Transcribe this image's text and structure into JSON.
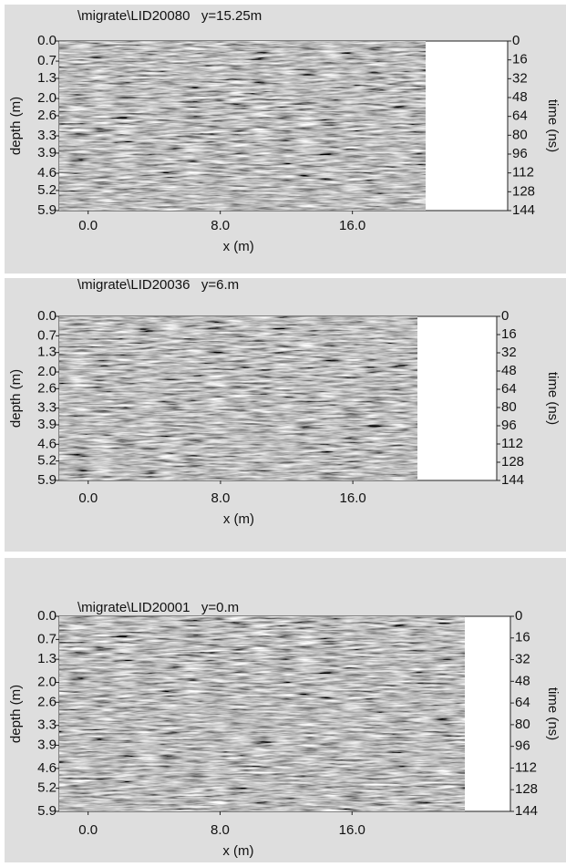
{
  "chart_data": [
    {
      "type": "radargram",
      "title": "\\migrate\\LID20080   y=15.25m",
      "x_label": "x (m)",
      "y_label": "depth (m)",
      "y2_label": "time (ns)",
      "xlim": [
        -1.75,
        25.4
      ],
      "xticks": [
        {
          "value": 0,
          "label": "0.0"
        },
        {
          "value": 8,
          "label": "8.0"
        },
        {
          "value": 16,
          "label": "16.0"
        }
      ],
      "ylim": [
        0,
        5.9
      ],
      "yticks": [
        {
          "value": 0,
          "label": "0.0"
        },
        0.7,
        1.3,
        {
          "value": 2,
          "label": "2.0"
        },
        2.6,
        3.3,
        3.9,
        4.6,
        5.2,
        5.9
      ],
      "y2lim": [
        0,
        144
      ],
      "y2ticks": [
        0,
        16,
        32,
        48,
        64,
        80,
        96,
        112,
        128,
        144
      ]
    },
    {
      "type": "radargram",
      "title": "\\migrate\\LID20036   y=6.m",
      "x_label": "x (m)",
      "y_label": "depth (m)",
      "y2_label": "time (ns)",
      "xlim": [
        -1.75,
        24.7
      ],
      "xticks": [
        {
          "value": 0,
          "label": "0.0"
        },
        {
          "value": 8,
          "label": "8.0"
        },
        {
          "value": 16,
          "label": "16.0"
        }
      ],
      "ylim": [
        0,
        5.9
      ],
      "yticks": [
        {
          "value": 0,
          "label": "0.0"
        },
        0.7,
        1.3,
        {
          "value": 2,
          "label": "2.0"
        },
        2.6,
        3.3,
        3.9,
        4.6,
        5.2,
        5.9
      ],
      "y2lim": [
        0,
        144
      ],
      "y2ticks": [
        0,
        16,
        32,
        48,
        64,
        80,
        96,
        112,
        128,
        144
      ]
    },
    {
      "type": "radargram",
      "title": "\\migrate\\LID20001   y=0.m",
      "x_label": "x (m)",
      "y_label": "depth (m)",
      "y2_label": "time (ns)",
      "xlim": [
        -1.75,
        25.6
      ],
      "xticks": [
        {
          "value": 0,
          "label": "0.0"
        },
        {
          "value": 8,
          "label": "8.0"
        },
        {
          "value": 16,
          "label": "16.0"
        }
      ],
      "ylim": [
        0,
        5.9
      ],
      "yticks": [
        {
          "value": 0,
          "label": "0.0"
        },
        0.7,
        1.3,
        {
          "value": 2,
          "label": "2.0"
        },
        2.6,
        3.3,
        3.9,
        4.6,
        5.2,
        5.9
      ],
      "y2lim": [
        0,
        144
      ],
      "y2ticks": [
        0,
        16,
        32,
        48,
        64,
        80,
        96,
        112,
        128,
        144
      ]
    }
  ]
}
